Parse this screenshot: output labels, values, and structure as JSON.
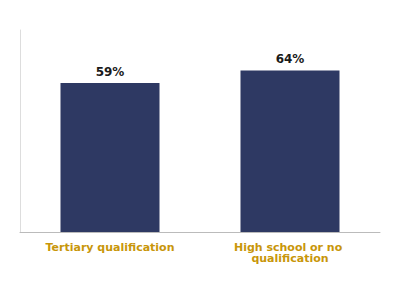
{
  "chart_data": {
    "type": "bar",
    "categories": [
      "Tertiary qualification",
      "High school or no qualification"
    ],
    "values": [
      59,
      64
    ],
    "value_labels": [
      "59%",
      "64%"
    ],
    "data_labels": true,
    "color": "#2E3963",
    "ylim": [
      0,
      80
    ],
    "tick_labels": "x",
    "grid": false
  }
}
